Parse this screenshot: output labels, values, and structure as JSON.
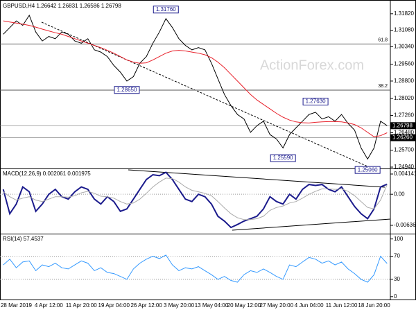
{
  "chart_data": [
    {
      "type": "line",
      "title": "GBPUSD,H4  1.26642 1.26831 1.26586 1.26798",
      "watermark": "ActionForex.com",
      "ylim": [
        1.24878,
        1.32375
      ],
      "yticks": [
        {
          "value": 1.3182,
          "label": "1.31820"
        },
        {
          "value": 1.3108,
          "label": "1.31080"
        },
        {
          "value": 1.3034,
          "label": "1.30340"
        },
        {
          "value": 1.2956,
          "label": "1.29560"
        },
        {
          "value": 1.288,
          "label": "1.28800"
        },
        {
          "value": 1.2802,
          "label": "1.28020"
        },
        {
          "value": 1.2726,
          "label": "1.27260"
        },
        {
          "value": 1.2648,
          "label": "1.26480"
        },
        {
          "value": 1.257,
          "label": "1.25700"
        },
        {
          "value": 1.2494,
          "label": "1.24940"
        }
      ],
      "series": [
        {
          "color": "#000000",
          "values": [
            1.309,
            1.312,
            1.315,
            1.313,
            1.3175,
            1.31,
            1.306,
            1.308,
            1.307,
            1.31,
            1.309,
            1.306,
            1.305,
            1.307,
            1.302,
            1.301,
            1.299,
            1.295,
            1.292,
            1.288,
            1.29,
            1.296,
            1.299,
            1.305,
            1.31,
            1.316,
            1.312,
            1.307,
            1.304,
            1.302,
            1.303,
            1.302,
            1.296,
            1.289,
            1.282,
            1.277,
            1.273,
            1.271,
            1.265,
            1.268,
            1.27,
            1.264,
            1.262,
            1.258,
            1.264,
            1.267,
            1.27,
            1.273,
            1.274,
            1.271,
            1.272,
            1.27,
            1.273,
            1.269,
            1.266,
            1.258,
            1.253,
            1.258,
            1.27,
            1.268
          ]
        },
        {
          "color": "#e8202a",
          "values": [
            1.315,
            1.3145,
            1.314,
            1.3135,
            1.313,
            1.3122,
            1.3113,
            1.3105,
            1.3097,
            1.309,
            1.308,
            1.307,
            1.306,
            1.305,
            1.304,
            1.303,
            1.3018,
            1.3005,
            1.299,
            1.2975,
            1.2965,
            1.296,
            1.2962,
            1.2975,
            1.299,
            1.3005,
            1.3015,
            1.3018,
            1.3015,
            1.301,
            1.3005,
            1.2998,
            1.2985,
            1.2965,
            1.294,
            1.291,
            1.288,
            1.285,
            1.282,
            1.2795,
            1.2775,
            1.2755,
            1.2735,
            1.2718,
            1.2705,
            1.2697,
            1.2693,
            1.2692,
            1.2695,
            1.2697,
            1.2698,
            1.2698,
            1.2697,
            1.2692,
            1.2685,
            1.267,
            1.265,
            1.263,
            1.2635,
            1.2648
          ]
        }
      ],
      "levels": [
        {
          "value": 1.30462,
          "label": "61.8"
        },
        {
          "value": 1.28395,
          "label": "38.2"
        }
      ],
      "price_tags": [
        {
          "value": 1.26798,
          "label": "1.26798"
        },
        {
          "value": 1.2626,
          "label": "1.26260"
        }
      ],
      "annotations": [
        {
          "at": 25,
          "value": 1.3176,
          "label": "1.31760"
        },
        {
          "at": 19,
          "value": 1.2865,
          "label": "1.28650"
        },
        {
          "at": 48,
          "value": 1.2763,
          "label": "1.27630"
        },
        {
          "at": 43,
          "value": 1.2559,
          "label": "1.25590"
        },
        {
          "at": 56,
          "value": 1.2506,
          "label": "1.25060"
        }
      ]
    },
    {
      "type": "line",
      "title": "MACD(12,26,9) 0.002061 0.001975",
      "ylim": [
        -0.008069,
        0.005135
      ],
      "yticks": [
        0.004141,
        {
          "value": 0,
          "label": "0.00"
        },
        -0.006365
      ],
      "series": [
        {
          "color": "#1a1a8c",
          "values": [
            0.001,
            -0.004,
            -0.002,
            0.0015,
            0.0005,
            -0.0035,
            -0.002,
            0,
            0.001,
            -0.0005,
            -0.001,
            0.0005,
            0.0015,
            0.001,
            -0.001,
            -0.002,
            -0.0005,
            -0.0015,
            -0.0035,
            -0.003,
            -0.001,
            0.001,
            0.003,
            0.004,
            0.0038,
            0.0045,
            0.003,
            0.001,
            -0.001,
            -0.0015,
            0,
            -0.0005,
            -0.002,
            -0.0045,
            -0.0055,
            -0.0068,
            -0.0062,
            -0.0055,
            -0.005,
            -0.0045,
            -0.003,
            -0.0005,
            -0.0015,
            -0.002,
            0,
            -0.001,
            0.001,
            0.002,
            0.0018,
            0.002,
            0.001,
            0.0005,
            0.0015,
            -0.0005,
            -0.0025,
            -0.004,
            -0.005,
            -0.003,
            0.0015,
            0.002061
          ]
        },
        {
          "color": "#aaaaaa",
          "values": [
            0.0005,
            -0.0005,
            -0.0012,
            -0.0008,
            -0.0005,
            -0.0012,
            -0.0015,
            -0.001,
            -0.0005,
            -0.0005,
            -0.0006,
            -0.0003,
            0.0003,
            0.0006,
            0.0002,
            -0.0004,
            -0.0005,
            -0.0008,
            -0.0015,
            -0.002,
            -0.0018,
            -0.001,
            0.0002,
            0.0015,
            0.0025,
            0.0033,
            0.0032,
            0.0025,
            0.0015,
            0.0008,
            0.0005,
            0.0002,
            -0.0003,
            -0.0015,
            -0.0028,
            -0.004,
            -0.0048,
            -0.0052,
            -0.0052,
            -0.005,
            -0.0045,
            -0.0033,
            -0.0027,
            -0.0024,
            -0.0018,
            -0.0015,
            -0.0008,
            0,
            0.0006,
            0.0011,
            0.0011,
            0.001,
            0.0011,
            0.0006,
            -0.0003,
            -0.0015,
            -0.0027,
            -0.003,
            -0.0012,
            0.001975
          ]
        }
      ]
    },
    {
      "type": "line",
      "title": "RSI(14) 57.4537",
      "ylim": [
        -5,
        108
      ],
      "yticks": [
        100,
        70,
        30,
        0
      ],
      "categories": [
        null,
        null,
        "28 Mar 2019",
        null,
        null,
        null,
        null,
        "4 Apr 12:00",
        null,
        null,
        null,
        null,
        "11 Apr 20:00",
        null,
        null,
        null,
        null,
        "19 Apr 04:00",
        null,
        null,
        null,
        null,
        "26 Apr 12:00",
        null,
        null,
        null,
        null,
        "3 May 20:00",
        null,
        null,
        null,
        null,
        "13 May 04:00",
        null,
        null,
        null,
        null,
        "20 May 12:00",
        null,
        null,
        null,
        null,
        "27 May 20:00",
        null,
        null,
        null,
        null,
        "4 Jun 04:00",
        null,
        null,
        null,
        null,
        "11 Jun 12:00",
        null,
        null,
        null,
        null,
        "18 Jun 20:00",
        null,
        null
      ],
      "series": [
        {
          "color": "#3399ff",
          "values": [
            55,
            65,
            50,
            60,
            62,
            45,
            55,
            52,
            58,
            50,
            48,
            55,
            62,
            58,
            45,
            50,
            42,
            40,
            35,
            30,
            48,
            58,
            65,
            70,
            66,
            72,
            55,
            45,
            50,
            48,
            52,
            45,
            38,
            30,
            35,
            28,
            25,
            38,
            45,
            42,
            48,
            42,
            35,
            30,
            55,
            52,
            60,
            68,
            65,
            58,
            62,
            55,
            60,
            48,
            40,
            30,
            25,
            38,
            70,
            57.4537
          ]
        }
      ]
    }
  ]
}
